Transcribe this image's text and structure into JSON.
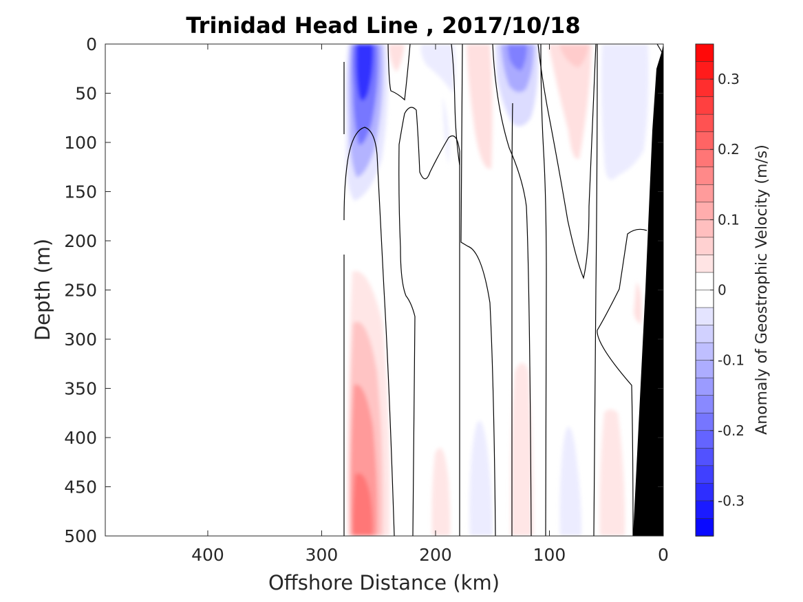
{
  "chart_data": {
    "type": "heatmap",
    "subtype": "filled-contour section",
    "title": "Trinidad Head Line , 2017/10/18",
    "xlabel": "Offshore Distance (km)",
    "ylabel": "Depth (m)",
    "xlim": [
      490,
      0
    ],
    "x_reversed": true,
    "ylim": [
      0,
      500
    ],
    "y_reversed": true,
    "x_ticks": [
      400,
      300,
      200,
      100,
      0
    ],
    "y_ticks": [
      0,
      50,
      100,
      150,
      200,
      250,
      300,
      350,
      400,
      450,
      500
    ],
    "grid": false,
    "colorbar": {
      "label": "Anomaly of Geostrophic Velocity (m/s)",
      "min": -0.35,
      "max": 0.35,
      "levels": 28,
      "ticks": [
        -0.3,
        -0.2,
        -0.1,
        0,
        0.1,
        0.2,
        0.3
      ],
      "low_color": "#0000ff",
      "mid_color": "#ffffff",
      "high_color": "#ff0000"
    },
    "zero_contour_color": "#000000",
    "bottom_topography_color": "#000000",
    "features": [
      {
        "label": "strong negative jet near surface",
        "x": 263,
        "depth_range": [
          0,
          160
        ],
        "peak_value": -0.3
      },
      {
        "label": "positive anomaly at depth",
        "x": 263,
        "depth_range": [
          230,
          500
        ],
        "peak_value": 0.15
      },
      {
        "label": "negative core",
        "x": 128,
        "depth_range": [
          0,
          110
        ],
        "peak_value": -0.13
      },
      {
        "label": "weak positive",
        "x": 160,
        "depth_range": [
          0,
          180
        ],
        "peak_value": 0.04
      },
      {
        "label": "weak positive",
        "x": 85,
        "depth_range": [
          0,
          120
        ],
        "peak_value": 0.04
      },
      {
        "label": "weak negative",
        "x": 30,
        "depth_range": [
          0,
          150
        ],
        "peak_value": -0.03
      }
    ]
  }
}
